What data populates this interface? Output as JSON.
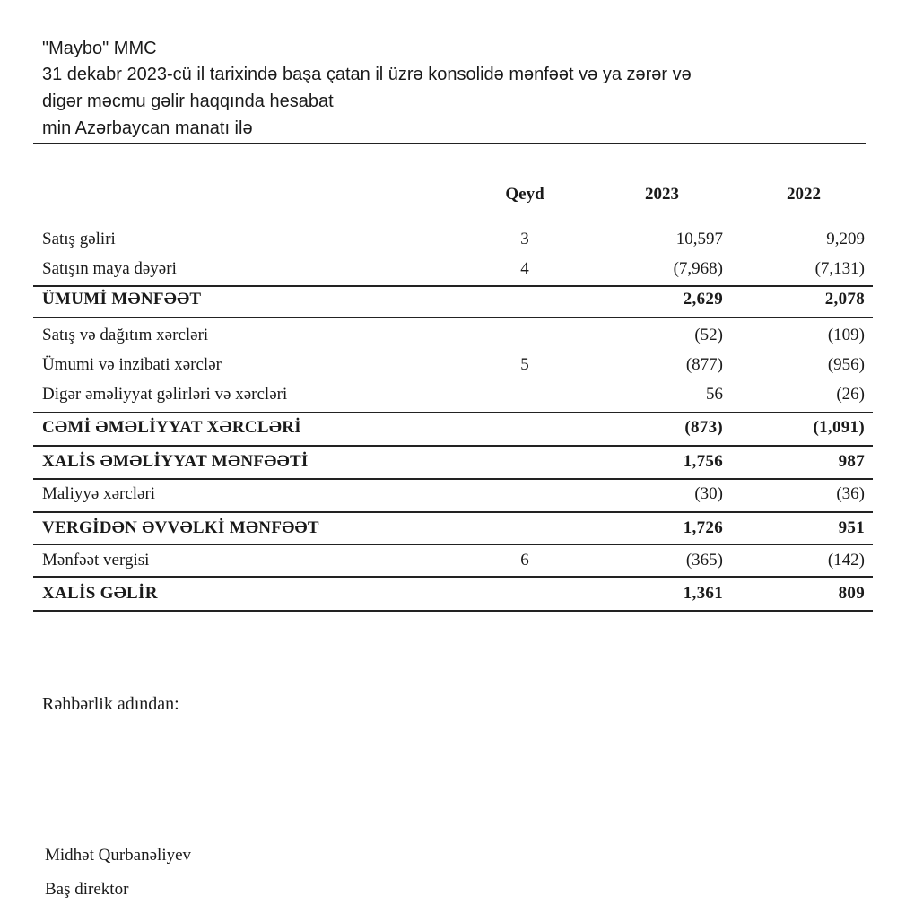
{
  "header": {
    "company": "\"Maybo\" MMC",
    "title_line1": "31 dekabr 2023-cü il tarixində başa çatan il üzrə konsolidə mənfəət və ya zərər və",
    "title_line2": "digər məcmu gəlir haqqında hesabat",
    "currency": "min Azərbaycan manatı ilə"
  },
  "columns": {
    "note": "Qeyd",
    "y2023": "2023",
    "y2022": "2022"
  },
  "rows": [
    {
      "label": "Satış gəliri",
      "note": "3",
      "y2023": "10,597",
      "y2022": "9,209"
    },
    {
      "label": "Satışın maya dəyəri",
      "note": "4",
      "y2023": "(7,968)",
      "y2022": "(7,131)"
    },
    {
      "label": "ÜMUMİ MƏNFƏƏT",
      "note": "",
      "y2023": "2,629",
      "y2022": "2,078"
    },
    {
      "label": "Satış və dağıtım xərcləri",
      "note": "",
      "y2023": "(52)",
      "y2022": "(109)"
    },
    {
      "label": "Ümumi və inzibati xərclər",
      "note": "5",
      "y2023": "(877)",
      "y2022": "(956)"
    },
    {
      "label": "Digər əməliyyat gəlirləri və xərcləri",
      "note": "",
      "y2023": "56",
      "y2022": "(26)"
    },
    {
      "label": "CƏMİ ƏMƏLİYYAT XƏRCLƏRİ",
      "note": "",
      "y2023": "(873)",
      "y2022": "(1,091)"
    },
    {
      "label": "XALİS ƏMƏLİYYAT MƏNFƏƏTİ",
      "note": "",
      "y2023": "1,756",
      "y2022": "987"
    },
    {
      "label": "Maliyyə xərcləri",
      "note": "",
      "y2023": "(30)",
      "y2022": "(36)"
    },
    {
      "label": "VERGİDƏN ƏVVƏLKİ MƏNFƏƏT",
      "note": "",
      "y2023": "1,726",
      "y2022": "951"
    },
    {
      "label": "Mənfəət vergisi",
      "note": "6",
      "y2023": "(365)",
      "y2022": "(142)"
    },
    {
      "label": "XALİS GƏLİR",
      "note": "",
      "y2023": "1,361",
      "y2022": "809"
    }
  ],
  "footer": {
    "on_behalf": "Rəhbərlik adından:",
    "signer_name": "Midhət Qurbanəliyev",
    "signer_title": "Baş direktor"
  }
}
